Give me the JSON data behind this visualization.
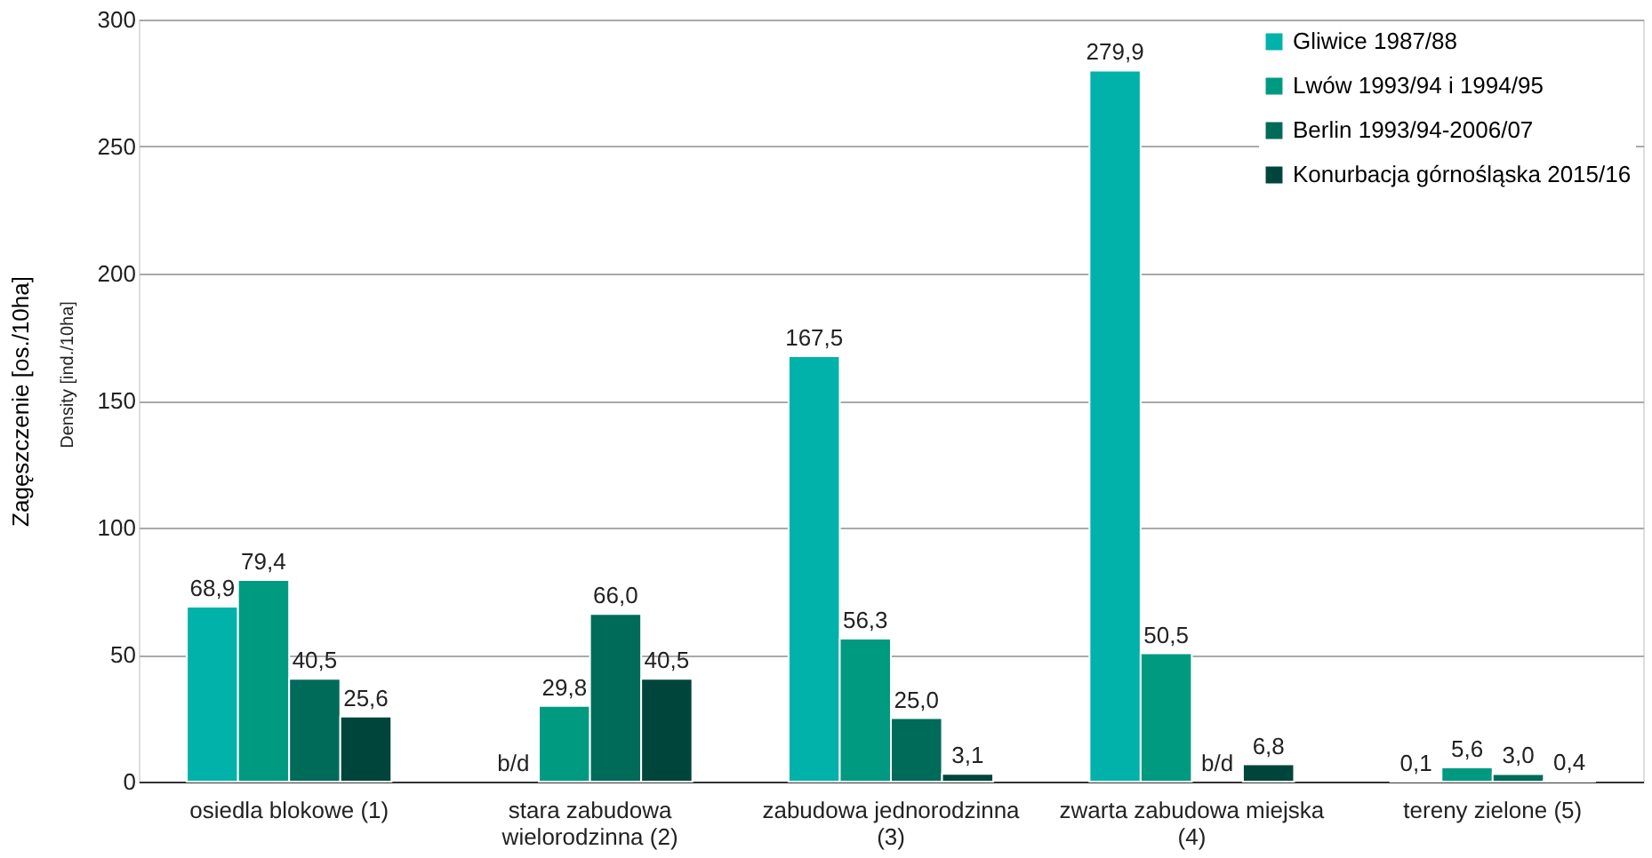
{
  "chart_data": {
    "type": "bar",
    "ylabel": "Zagęszczenie [os./10ha]",
    "annotations": [
      "Density [ind./10ha]"
    ],
    "categories": [
      "osiedla blokowe (1)",
      "stara zabudowa wielorodzinna (2)",
      "zabudowa jednorodzinna (3)",
      "zwarta zabudowa miejska (4)",
      "tereny zielone (5)"
    ],
    "series": [
      {
        "name": "Gliwice 1987/88",
        "color": "#00b2a9",
        "values": [
          68.9,
          null,
          167.5,
          279.9,
          0.1
        ],
        "value_labels": [
          "68,9",
          "b/d",
          "167,5",
          "279,9",
          "0,1"
        ]
      },
      {
        "name": "Lwów 1993/94 i 1994/95",
        "color": "#009a80",
        "values": [
          79.4,
          29.8,
          56.3,
          50.5,
          5.6
        ],
        "value_labels": [
          "79,4",
          "29,8",
          "56,3",
          "50,5",
          "5,6"
        ]
      },
      {
        "name": "Berlin 1993/94-2006/07",
        "color": "#006b59",
        "values": [
          40.5,
          66.0,
          25.0,
          null,
          3.0
        ],
        "value_labels": [
          "40,5",
          "66,0",
          "25,0",
          "b/d",
          "3,0"
        ]
      },
      {
        "name": "Konurbacja górnośląska 2015/16",
        "color": "#00453b",
        "values": [
          25.6,
          40.5,
          3.1,
          6.8,
          0.4
        ],
        "value_labels": [
          "25,6",
          "40,5",
          "3,1",
          "6,8",
          "0,4"
        ]
      }
    ],
    "ylim": [
      0,
      300
    ],
    "yticks": [
      0,
      50,
      100,
      150,
      200,
      250,
      300
    ],
    "grid": "y",
    "legend": "top right"
  }
}
